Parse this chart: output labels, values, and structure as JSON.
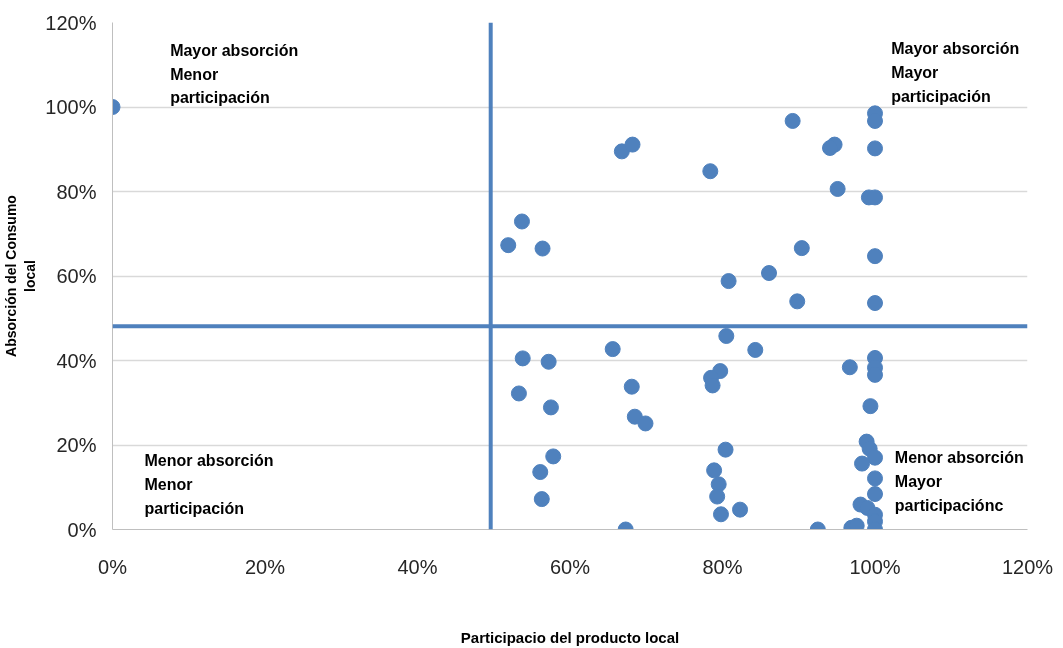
{
  "chart_data": {
    "type": "scatter",
    "xlabel": "Participacio del producto local",
    "ylabel": "Absorción del Consumo\nlocal",
    "annotations": [
      "Mayor absorción\nMenor\nparticipación",
      "Mayor absorción\nMayor\nparticipación",
      "Menor absorción\nMenor\nparticipación",
      "Menor absorción\nMayor\nparticipaciónc"
    ],
    "x": [
      0,
      66.8,
      68.2,
      78.4,
      53.7,
      51.9,
      56.4,
      80.8,
      80.5,
      84.3,
      65.6,
      53.8,
      57.2,
      79.7,
      78.5,
      78.7,
      68.1,
      53.3,
      57.5,
      68.5,
      69.9,
      80.4,
      57.8,
      56.1,
      78.9,
      79.5,
      79.3,
      56.3,
      79.8,
      82.3,
      67.3,
      89.2,
      94.7,
      94.1,
      100,
      100,
      100,
      95.1,
      99.2,
      100,
      90.4,
      100,
      86.1,
      89.8,
      100,
      96.7,
      100,
      100,
      100,
      99.4,
      98.9,
      99.3,
      100,
      98.3,
      100,
      100,
      98.1,
      99.0,
      100,
      100,
      100,
      96.9,
      97.6,
      92.5
    ],
    "series": [
      {
        "color": "#4f81bd",
        "values": [
          100,
          89.5,
          91.1,
          84.8,
          72.9,
          67.3,
          66.5,
          58.8,
          45.8,
          42.5,
          42.7,
          40.5,
          39.7,
          37.5,
          35.9,
          34.1,
          33.8,
          32.2,
          28.9,
          26.7,
          25.1,
          18.9,
          17.3,
          13.6,
          14.0,
          10.7,
          7.8,
          7.2,
          3.6,
          4.7,
          0,
          96.7,
          91.1,
          90.3,
          98.5,
          96.7,
          90.2,
          80.6,
          78.6,
          78.6,
          66.6,
          64.7,
          60.7,
          54.0,
          53.6,
          38.4,
          40.6,
          38.3,
          36.6,
          29.2,
          20.8,
          19.1,
          17.0,
          15.6,
          12.1,
          8.4,
          5.9,
          5.1,
          3.5,
          1.9,
          0,
          0.4,
          0.9,
          0
        ]
      }
    ],
    "xlim": [
      0,
      120
    ],
    "ylim": [
      0,
      120
    ],
    "xticks": [
      {
        "value": 0,
        "label": "0%"
      },
      {
        "value": 20,
        "label": "20%"
      },
      {
        "value": 40,
        "label": "40%"
      },
      {
        "value": 60,
        "label": "60%"
      },
      {
        "value": 80,
        "label": "80%"
      },
      {
        "value": 100,
        "label": "100%"
      },
      {
        "value": 120,
        "label": "120%"
      }
    ],
    "yticks": [
      {
        "value": 0,
        "label": "0%"
      },
      {
        "value": 20,
        "label": "20%"
      },
      {
        "value": 40,
        "label": "40%"
      },
      {
        "value": 60,
        "label": "60%"
      },
      {
        "value": 80,
        "label": "80%"
      },
      {
        "value": 100,
        "label": "100%"
      },
      {
        "value": 120,
        "label": "120%"
      }
    ],
    "grid": "y",
    "marker": "circle",
    "ref_lines": [
      {
        "axis": "x",
        "value": 49.6,
        "color": "#4f81bd"
      },
      {
        "axis": "y",
        "value": 48.1,
        "color": "#4f81bd"
      }
    ]
  }
}
